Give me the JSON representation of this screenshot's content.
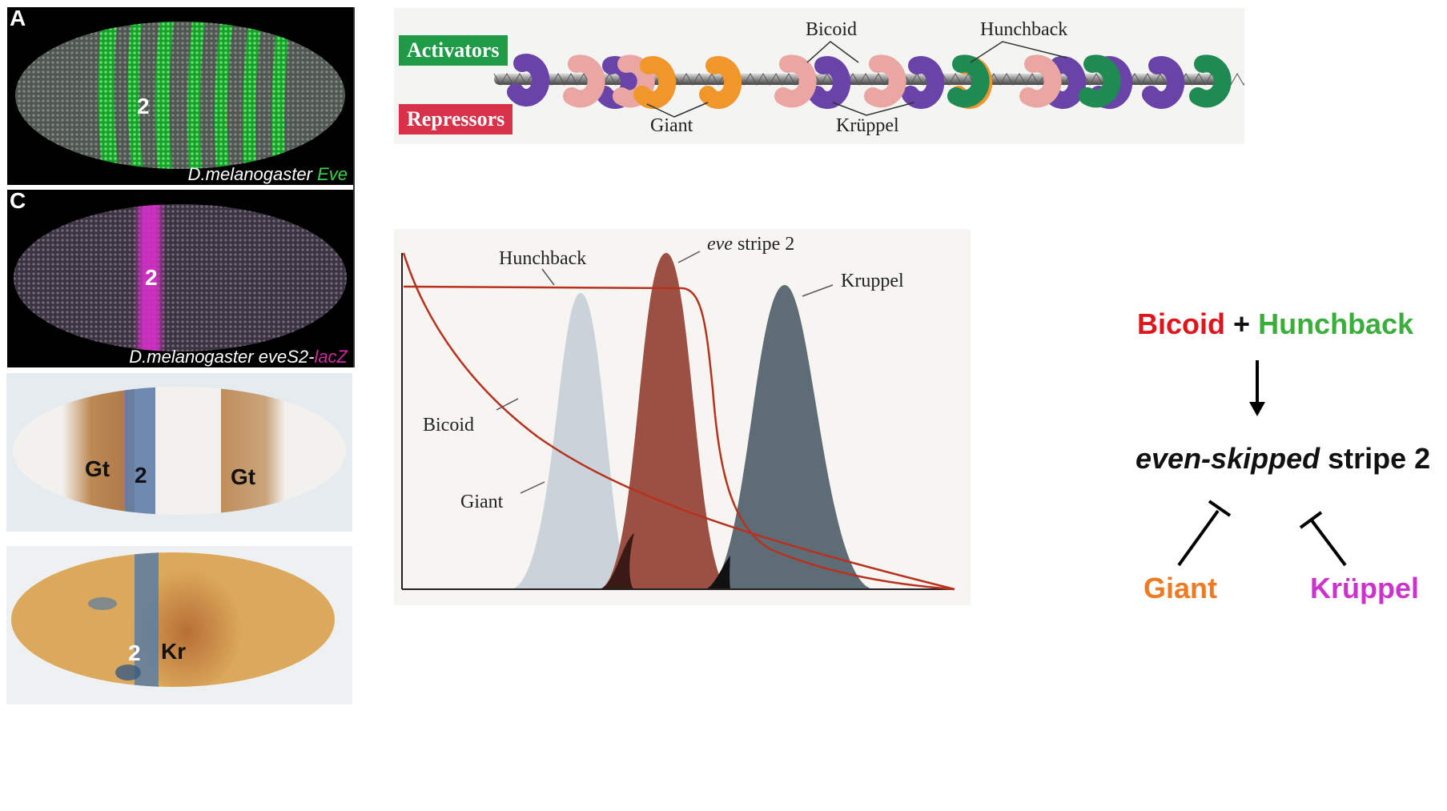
{
  "panel_a": {
    "label": "A",
    "stripe_number": "2",
    "caption_species": "D.melanogaster",
    "caption_gene": "Eve",
    "colors": {
      "background": "#000000",
      "stripes": "#3ad14a",
      "nuclei": "#8a8f8a"
    }
  },
  "panel_c": {
    "label": "C",
    "stripe_number": "2",
    "caption_species": "D.melanogaster",
    "caption_construct": "eveS2-",
    "caption_reporter": "lacZ",
    "colors": {
      "background": "#000000",
      "stripe": "#d62fc9",
      "reporter_text": "#d02a9f"
    }
  },
  "panel_gt": {
    "label_left": "Gt",
    "stripe_number": "2",
    "label_right": "Gt",
    "colors": {
      "brown": "#b9834a",
      "blue": "#5f7ea8"
    }
  },
  "panel_kr": {
    "stripe_number": "2",
    "label": "Kr",
    "colors": {
      "embryo": "#d9a458",
      "blue": "#5a7ca0"
    }
  },
  "dna_diagram": {
    "activators_label": "Activators",
    "repressors_label": "Repressors",
    "bicoid_label": "Bicoid",
    "hunchback_label": "Hunchback",
    "giant_label": "Giant",
    "kruppel_label": "Krüppel",
    "colors": {
      "activators_tag": "#1f9a46",
      "repressors_tag": "#d8314a",
      "bicoid": "#e9a6a2",
      "hunchback": "#1f8a52",
      "giant": "#f0962a",
      "kruppel": "#6a43a8"
    }
  },
  "gradient_graph": {
    "hunchback_label": "Hunchback",
    "eve_label_italic": "eve",
    "eve_label_rest": " stripe 2",
    "kruppel_label": "Kruppel",
    "bicoid_label": "Bicoid",
    "giant_label": "Giant",
    "colors": {
      "giant_peak": "#c9d3d9",
      "eve_peak": "#9b5043",
      "kruppel_peak": "#5e6c76",
      "curves": "#b8311f"
    }
  },
  "schematic": {
    "bicoid": "Bicoid",
    "plus": "+",
    "hunchback": "Hunchback",
    "target_italic": "even-skipped",
    "target_rest": " stripe 2",
    "giant": "Giant",
    "kruppel": "Krüppel",
    "colors": {
      "bicoid": "#e0141b",
      "hunchback": "#3aae3a",
      "giant": "#f07a22",
      "kruppel": "#cc33cc",
      "arrows": "#000000"
    }
  }
}
